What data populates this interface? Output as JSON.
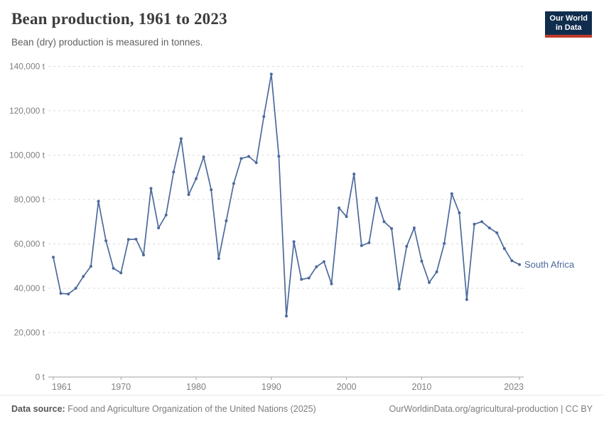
{
  "header": {
    "title": "Bean production, 1961 to 2023",
    "subtitle": "Bean (dry) production is measured in tonnes."
  },
  "logo": {
    "line1": "Our World",
    "line2": "in Data"
  },
  "footer": {
    "source_label": "Data source:",
    "source_text": " Food and Agriculture Organization of the United Nations (2025)",
    "right_text": "OurWorldinData.org/agricultural-production | CC BY"
  },
  "colors": {
    "line": "#4C6A9C",
    "series_label": "#4C6A9C",
    "grid": "#dadada",
    "axis": "#a1a1a1",
    "tick_text": "#808080",
    "logo_bg": "#102d4e",
    "logo_red": "#bf3b2a"
  },
  "chart_data": {
    "type": "line",
    "title": "Bean production, 1961 to 2023",
    "subtitle": "Bean (dry) production is measured in tonnes.",
    "unit": "t",
    "legend_position": "right-end-label",
    "grid": true,
    "xlim": [
      1961,
      2023
    ],
    "ylim": [
      0,
      140000
    ],
    "xticks": [
      1961,
      1970,
      1980,
      1990,
      2000,
      2010,
      2023
    ],
    "yticks": [
      0,
      20000,
      40000,
      60000,
      80000,
      100000,
      120000,
      140000
    ],
    "x": [
      1961,
      1962,
      1963,
      1964,
      1965,
      1966,
      1967,
      1968,
      1969,
      1970,
      1971,
      1972,
      1973,
      1974,
      1975,
      1976,
      1977,
      1978,
      1979,
      1980,
      1981,
      1982,
      1983,
      1984,
      1985,
      1986,
      1987,
      1988,
      1989,
      1990,
      1991,
      1992,
      1993,
      1994,
      1995,
      1996,
      1997,
      1998,
      1999,
      2000,
      2001,
      2002,
      2003,
      2004,
      2005,
      2006,
      2007,
      2008,
      2009,
      2010,
      2011,
      2012,
      2013,
      2014,
      2015,
      2016,
      2017,
      2018,
      2019,
      2020,
      2021,
      2022,
      2023
    ],
    "series": [
      {
        "name": "South Africa",
        "values": [
          54000,
          37700,
          37400,
          40000,
          45300,
          49900,
          79200,
          61400,
          49000,
          46900,
          62000,
          62100,
          55000,
          85000,
          67200,
          73000,
          92400,
          107400,
          82200,
          89400,
          99200,
          84400,
          53400,
          70400,
          87200,
          98500,
          99400,
          96600,
          117400,
          136500,
          99500,
          27500,
          61000,
          44000,
          44600,
          49700,
          52000,
          42000,
          76200,
          72300,
          91500,
          59200,
          60500,
          80600,
          70000,
          66900,
          39700,
          58900,
          67200,
          52200,
          42600,
          47400,
          60200,
          82600,
          74000,
          34900,
          68900,
          70000,
          67200,
          65000,
          57900,
          52400,
          50700
        ]
      }
    ]
  }
}
